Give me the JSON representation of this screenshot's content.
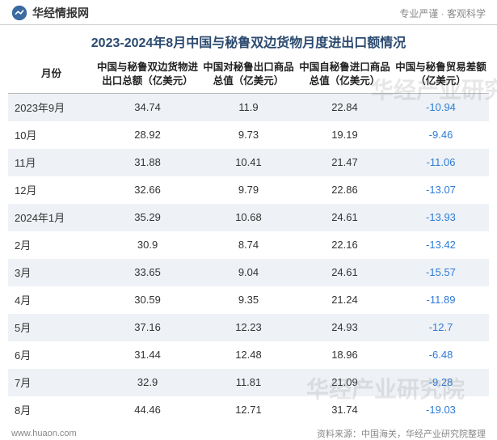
{
  "header": {
    "brand": "华经情报网",
    "tagline": "专业严谨 · 客观科学"
  },
  "title": "2023-2024年8月中国与秘鲁双边货物月度进出口额情况",
  "columns": [
    "月份",
    "中国与秘鲁双边货物进出口总额（亿美元）",
    "中国对秘鲁出口商品总值（亿美元）",
    "中国自秘鲁进口商品总值（亿美元）",
    "中国与秘鲁贸易差额（亿美元）"
  ],
  "col_widths": [
    "18%",
    "22%",
    "20%",
    "20%",
    "20%"
  ],
  "rows": [
    {
      "month": "2023年9月",
      "total": "34.74",
      "export": "11.9",
      "import": "22.84",
      "balance": "-10.94"
    },
    {
      "month": "10月",
      "total": "28.92",
      "export": "9.73",
      "import": "19.19",
      "balance": "-9.46"
    },
    {
      "month": "11月",
      "total": "31.88",
      "export": "10.41",
      "import": "21.47",
      "balance": "-11.06"
    },
    {
      "month": "12月",
      "total": "32.66",
      "export": "9.79",
      "import": "22.86",
      "balance": "-13.07"
    },
    {
      "month": "2024年1月",
      "total": "35.29",
      "export": "10.68",
      "import": "24.61",
      "balance": "-13.93"
    },
    {
      "month": "2月",
      "total": "30.9",
      "export": "8.74",
      "import": "22.16",
      "balance": "-13.42"
    },
    {
      "month": "3月",
      "total": "33.65",
      "export": "9.04",
      "import": "24.61",
      "balance": "-15.57"
    },
    {
      "month": "4月",
      "total": "30.59",
      "export": "9.35",
      "import": "21.24",
      "balance": "-11.89"
    },
    {
      "month": "5月",
      "total": "37.16",
      "export": "12.23",
      "import": "24.93",
      "balance": "-12.7"
    },
    {
      "month": "6月",
      "total": "31.44",
      "export": "12.48",
      "import": "18.96",
      "balance": "-6.48"
    },
    {
      "month": "7月",
      "total": "32.9",
      "export": "11.81",
      "import": "21.09",
      "balance": "-9.28"
    },
    {
      "month": "8月",
      "total": "44.46",
      "export": "12.71",
      "import": "31.74",
      "balance": "-19.03"
    }
  ],
  "footer": {
    "site": "www.huaon.com",
    "source": "资料来源：中国海关，华经产业研究院整理"
  },
  "watermark": "华经产业研究院",
  "colors": {
    "title": "#2b4a6f",
    "alt_row": "#eef2f6",
    "neg": "#2e7bd6",
    "border": "#bbbbbb",
    "text": "#333333",
    "muted": "#888888"
  }
}
